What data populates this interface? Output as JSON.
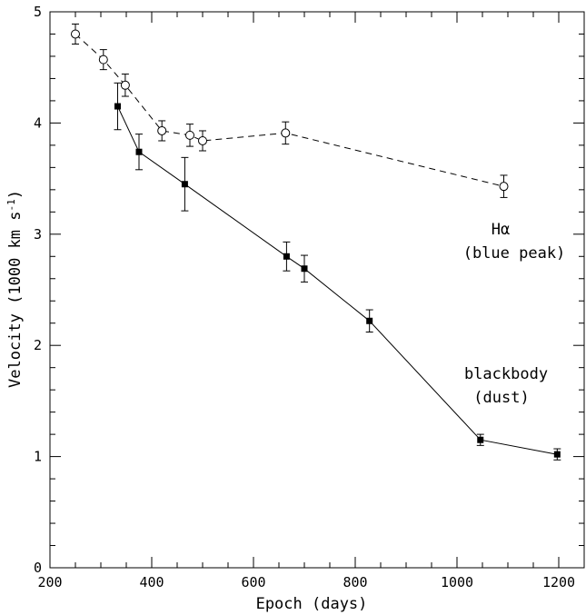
{
  "chart_data": {
    "type": "scatter",
    "xlabel": "Epoch (days)",
    "ylabel": "Velocity (1000 km s",
    "ylabel_sup": "-1",
    "ylabel_end": ")",
    "xlim": [
      200,
      1250
    ],
    "ylim": [
      0,
      5
    ],
    "x_major_ticks": [
      200,
      400,
      600,
      800,
      1000,
      1200
    ],
    "y_major_ticks": [
      0,
      1,
      2,
      3,
      4,
      5
    ],
    "x_minor_step": 50,
    "y_minor_step": 0.2,
    "grid": false,
    "series": [
      {
        "name": "Hα (blue peak)",
        "label_lines": [
          "Hα",
          "(blue peak)"
        ],
        "marker": "open-circle",
        "line": "dashed",
        "points": [
          {
            "x": 250,
            "y": 4.8,
            "err": 0.09
          },
          {
            "x": 305,
            "y": 4.57,
            "err": 0.09
          },
          {
            "x": 348,
            "y": 4.34,
            "err": 0.1
          },
          {
            "x": 420,
            "y": 3.93,
            "err": 0.09
          },
          {
            "x": 475,
            "y": 3.89,
            "err": 0.1
          },
          {
            "x": 500,
            "y": 3.84,
            "err": 0.09
          },
          {
            "x": 663,
            "y": 3.91,
            "err": 0.1
          },
          {
            "x": 1092,
            "y": 3.43,
            "err": 0.1
          }
        ]
      },
      {
        "name": "blackbody (dust)",
        "label_lines": [
          "blackbody",
          "(dust)"
        ],
        "marker": "filled-square",
        "line": "solid",
        "points": [
          {
            "x": 333,
            "y": 4.15,
            "err": 0.21
          },
          {
            "x": 375,
            "y": 3.74,
            "err": 0.16
          },
          {
            "x": 465,
            "y": 3.45,
            "err": 0.24
          },
          {
            "x": 665,
            "y": 2.8,
            "err": 0.13
          },
          {
            "x": 700,
            "y": 2.69,
            "err": 0.12
          },
          {
            "x": 828,
            "y": 2.22,
            "err": 0.1
          },
          {
            "x": 1046,
            "y": 1.15,
            "err": 0.05
          },
          {
            "x": 1197,
            "y": 1.02,
            "err": 0.05
          }
        ]
      }
    ]
  }
}
